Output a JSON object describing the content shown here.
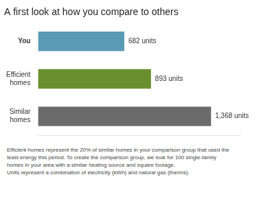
{
  "chart_data": {
    "type": "bar",
    "orientation": "horizontal",
    "title": "A first look at how you compare to others",
    "categories": [
      "Similar\nhomes",
      "Efficient\nhomes",
      "You"
    ],
    "values": [
      1368,
      893,
      682
    ],
    "value_labels": [
      "1,368 units",
      "893 units",
      "682 units"
    ],
    "data_labels": true,
    "colors": [
      "#6b6b6b",
      "#6a8f2f",
      "#5b9ab5"
    ],
    "xlim": [
      0,
      1600
    ],
    "grid": false,
    "tick_labels": "y",
    "annotations": [
      "Efficient homes represent the 20% of similar homes in your comparison group that used the",
      "least energy this period. To create the comparison group, we look for 100 single-family",
      "homes in your area with a similar heating source and square footage.",
      "Units represent a combination of electricity (kWh) and natural gas (therms)."
    ]
  }
}
